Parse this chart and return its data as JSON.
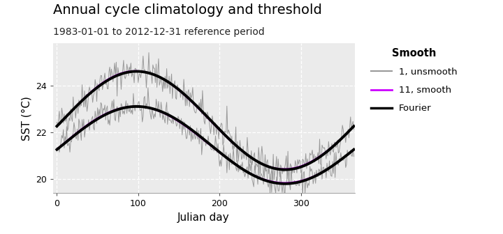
{
  "title": "Annual cycle climatology and threshold",
  "subtitle": "1983-01-01 to 2012-12-31 reference period",
  "xlabel": "Julian day",
  "ylabel": "SST (°C)",
  "legend_title": "Smooth",
  "legend_entries": [
    "1, unsmooth",
    "11, smooth",
    "Fourier"
  ],
  "colors": {
    "unsmooth": "#999999",
    "smooth": "#CC00FF",
    "fourier": "#000000"
  },
  "linewidths": {
    "unsmooth": 0.7,
    "smooth": 1.4,
    "fourier": 2.8
  },
  "ylim": [
    19.4,
    25.8
  ],
  "xlim": [
    -5,
    366
  ],
  "yticks": [
    20,
    22,
    24
  ],
  "xticks": [
    0,
    100,
    200,
    300
  ],
  "background_color": "#EBEBEB",
  "fig_background": "#FFFFFF",
  "title_fontsize": 14,
  "subtitle_fontsize": 10,
  "axis_label_fontsize": 11,
  "tick_fontsize": 9,
  "fourier_thresh_base": 22.5,
  "fourier_thresh_amplitude": 2.1,
  "fourier_thresh_phase": 98,
  "fourier_mean_base": 21.45,
  "fourier_mean_amplitude": 1.65,
  "fourier_mean_phase": 98,
  "noise_thresh_std": 0.35,
  "noise_mean_std": 0.28
}
